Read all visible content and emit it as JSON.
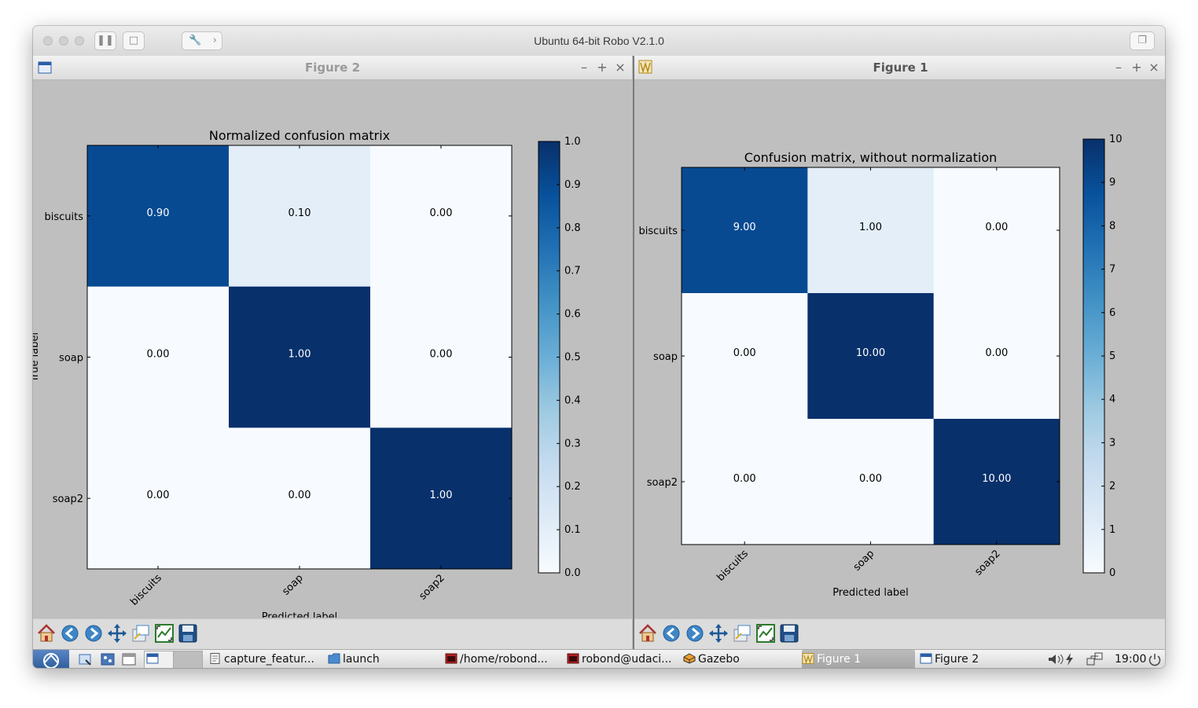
{
  "window": {
    "title": "Ubuntu 64-bit Robo V2.1.0"
  },
  "figures": {
    "figure2": {
      "window_title": "Figure 2",
      "chart_data": {
        "type": "heatmap",
        "title": "Normalized confusion matrix",
        "xlabel": "Predicted label",
        "ylabel": "True label",
        "x_categories": [
          "biscuits",
          "soap",
          "soap2"
        ],
        "y_categories": [
          "biscuits",
          "soap",
          "soap2"
        ],
        "values": [
          [
            0.9,
            0.1,
            0.0
          ],
          [
            0.0,
            1.0,
            0.0
          ],
          [
            0.0,
            0.0,
            1.0
          ]
        ],
        "cell_labels": [
          [
            "0.90",
            "0.10",
            "0.00"
          ],
          [
            "0.00",
            "1.00",
            "0.00"
          ],
          [
            "0.00",
            "0.00",
            "1.00"
          ]
        ],
        "colorbar": {
          "range": [
            0,
            1
          ],
          "ticks": [
            "0.0",
            "0.1",
            "0.2",
            "0.3",
            "0.4",
            "0.5",
            "0.6",
            "0.7",
            "0.8",
            "0.9",
            "1.0"
          ]
        },
        "colormap": "Blues"
      }
    },
    "figure1": {
      "window_title": "Figure 1",
      "chart_data": {
        "type": "heatmap",
        "title": "Confusion matrix, without normalization",
        "xlabel": "Predicted label",
        "ylabel": "",
        "x_categories": [
          "biscuits",
          "soap",
          "soap2"
        ],
        "y_categories": [
          "biscuits",
          "soap",
          "soap2"
        ],
        "values": [
          [
            9,
            1,
            0
          ],
          [
            0,
            10,
            0
          ],
          [
            0,
            0,
            10
          ]
        ],
        "cell_labels": [
          [
            "9.00",
            "1.00",
            "0.00"
          ],
          [
            "0.00",
            "10.00",
            "0.00"
          ],
          [
            "0.00",
            "0.00",
            "10.00"
          ]
        ],
        "colorbar": {
          "range": [
            0,
            10
          ],
          "ticks": [
            "0",
            "1",
            "2",
            "3",
            "4",
            "5",
            "6",
            "7",
            "8",
            "9",
            "10"
          ]
        },
        "colormap": "Blues"
      }
    }
  },
  "toolbar": {
    "icons": [
      "home-icon",
      "back-icon",
      "forward-icon",
      "pan-icon",
      "zoom-icon",
      "configure-subplots-icon",
      "save-icon"
    ]
  },
  "taskbar": {
    "items": [
      {
        "label": "capture_featur...",
        "icon": "text-file-icon"
      },
      {
        "label": "launch",
        "icon": "folder-icon"
      },
      {
        "label": "/home/robond...",
        "icon": "terminal-icon"
      },
      {
        "label": "robond@udaci...",
        "icon": "terminal-icon"
      },
      {
        "label": "Gazebo",
        "icon": "gazebo-icon"
      },
      {
        "label": "Figure 1",
        "icon": "figure-icon",
        "active": true
      },
      {
        "label": "Figure 2",
        "icon": "window-icon"
      }
    ],
    "clock": "19:00"
  },
  "colors": {
    "blue_dark": "#08306b",
    "blue_mid": "#08519c",
    "blue_light": "#deebf7",
    "blue_pale": "#f7fbff"
  }
}
